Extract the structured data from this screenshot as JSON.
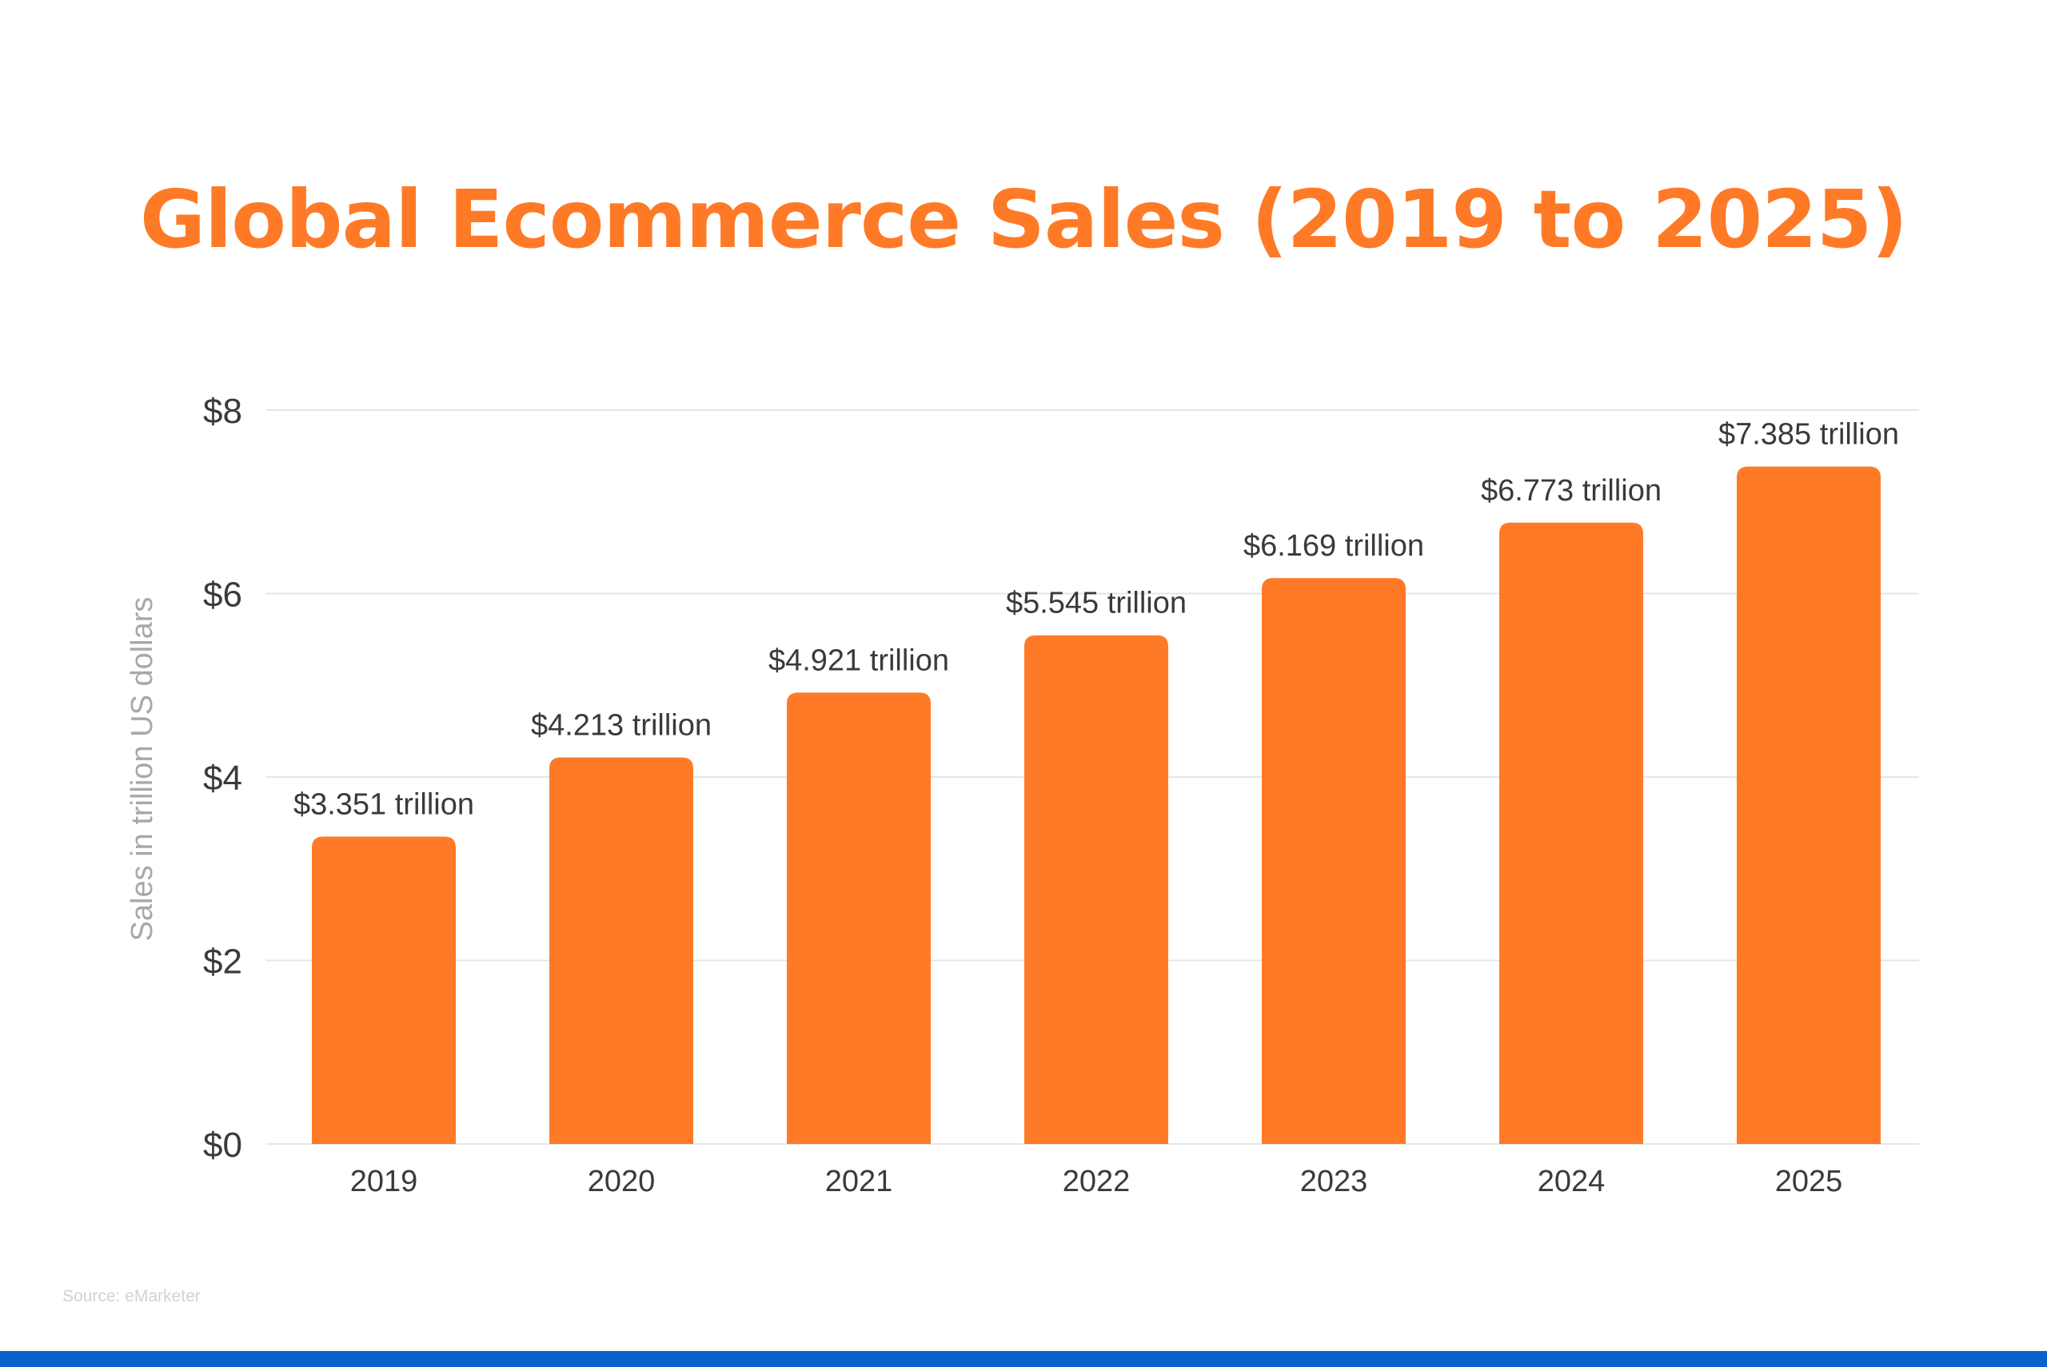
{
  "title": "Global Ecommerce Sales (2019 to 2025)",
  "source": "Source: eMarketer",
  "colors": {
    "title": "#ff7a27",
    "bar": "#ff7a27",
    "grid": "#e6e6e6",
    "axis_text": "#3a3a3a",
    "ylabel_text": "#a8a8a8",
    "bottom_bar": "#0b63c9"
  },
  "chart_data": {
    "type": "bar",
    "title": "Global Ecommerce Sales (2019 to 2025)",
    "xlabel": "",
    "ylabel": "Sales in trillion US dollars",
    "categories": [
      "2019",
      "2020",
      "2021",
      "2022",
      "2023",
      "2024",
      "2025"
    ],
    "values": [
      3.351,
      4.213,
      4.921,
      5.545,
      6.169,
      6.773,
      7.385
    ],
    "data_labels": [
      "$3.351 trillion",
      "$4.213 trillion",
      "$4.921 trillion",
      "$5.545 trillion",
      "$6.169 trillion",
      "$6.773 trillion",
      "$7.385 trillion"
    ],
    "ylim": [
      0,
      8
    ],
    "yticks": [
      0,
      2,
      4,
      6,
      8
    ],
    "ytick_labels": [
      "$0",
      "$2",
      "$4",
      "$6",
      "$8"
    ],
    "grid": true,
    "legend": "none"
  }
}
